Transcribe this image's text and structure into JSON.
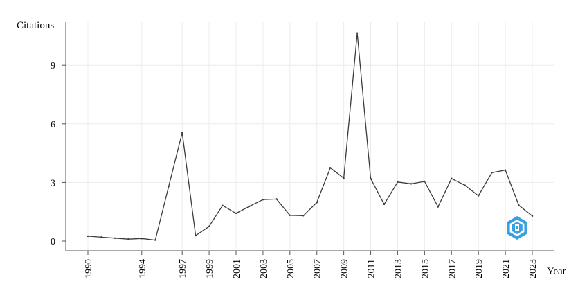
{
  "chart_data": {
    "type": "line",
    "ylabel": "Citations",
    "xlabel": "Year",
    "xlim": [
      1990,
      2023
    ],
    "ylim": [
      0,
      11
    ],
    "y_ticks": [
      0,
      3,
      6,
      9
    ],
    "x_ticks": [
      1990,
      1994,
      1997,
      1999,
      2001,
      2003,
      2005,
      2007,
      2009,
      2011,
      2013,
      2015,
      2017,
      2019,
      2021,
      2023
    ],
    "grid": true,
    "series": [
      {
        "x": [
          1990,
          1991,
          1992,
          1993,
          1994,
          1995,
          1996,
          1997,
          1998,
          1999,
          2000,
          2001,
          2002,
          2003,
          2004,
          2005,
          2006,
          2007,
          2008,
          2009,
          2010,
          2011,
          2012,
          2013,
          2014,
          2015,
          2016,
          2017,
          2018,
          2019,
          2020,
          2021,
          2022,
          2023
        ],
        "values": [
          0.25,
          0.2,
          0.15,
          0.1,
          0.13,
          0.05,
          2.8,
          5.55,
          0.28,
          0.75,
          1.82,
          1.42,
          1.78,
          2.12,
          2.15,
          1.32,
          1.3,
          1.97,
          3.75,
          3.22,
          10.65,
          3.2,
          1.88,
          3.02,
          2.93,
          3.05,
          1.75,
          3.2,
          2.85,
          2.32,
          3.5,
          3.63,
          1.83,
          1.28
        ],
        "color": "#3a3a3a"
      }
    ]
  },
  "watermark": {
    "icon": "hexagon-logo-icon",
    "color": "#3aa0e0"
  }
}
